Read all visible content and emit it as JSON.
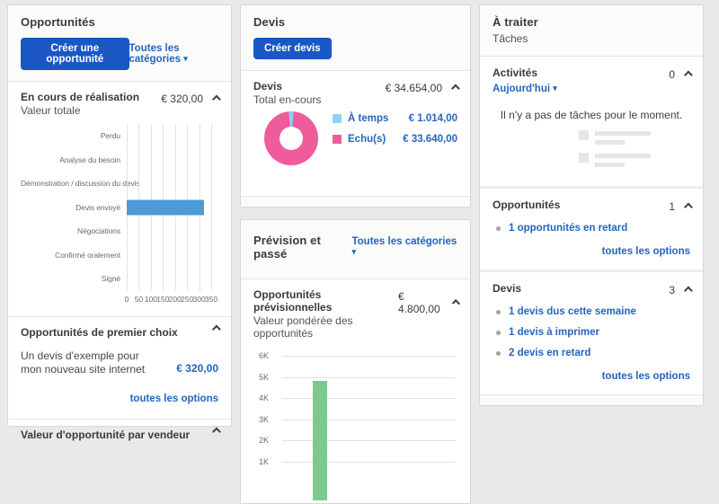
{
  "colors": {
    "accent_blue": "#1b57c4",
    "link_blue": "#2465c0",
    "bar_blue": "#4d9bd8",
    "donut_pink": "#ef5c9b",
    "donut_sky": "#8bd3f5",
    "bar_green": "#7cc98c"
  },
  "icons": {
    "caret_down": "▾"
  },
  "left_panel": {
    "title": "Opportunités",
    "create_button": "Créer une opportunité",
    "category_filter": "Toutes les catégories",
    "in_progress": {
      "title": "En cours de réalisation",
      "subtitle": "Valeur totale",
      "total": "€ 320,00"
    },
    "top_opportunities": {
      "title": "Opportunités de premier choix",
      "item_label": "Un devis d'exemple pour mon nouveau site internet",
      "item_value": "€ 320,00",
      "options_link": "toutes les options"
    },
    "by_vendor_title": "Valeur d'opportunité par vendeur"
  },
  "middle_panel": {
    "quotes": {
      "title": "Devis",
      "create_button": "Créer devis",
      "section_title": "Devis",
      "section_subtitle": "Total en-cours",
      "total": "€ 34.654,00"
    },
    "forecast": {
      "title": "Prévision et passé",
      "category_filter": "Toutes les catégories",
      "section_title": "Opportunités prévisionnelles",
      "section_subtitle": "Valeur pondérée des opportunités",
      "total": "€ 4.800,00"
    }
  },
  "right_panel": {
    "title": "À traiter",
    "subtitle": "Tâches",
    "activities": {
      "title": "Activités",
      "filter": "Aujourd'hui",
      "count": "0",
      "empty_message": "Il n'y a pas de tâches pour le moment."
    },
    "opportunities": {
      "title": "Opportunités",
      "count": "1",
      "items": [
        "1 opportunités en retard"
      ],
      "options_link": "toutes les options"
    },
    "quotes": {
      "title": "Devis",
      "count": "3",
      "items": [
        "1 devis dus cette semaine",
        "1 devis à imprimer",
        "2 devis en retard"
      ],
      "options_link": "toutes les options"
    }
  },
  "chart_data": [
    {
      "type": "bar",
      "orientation": "horizontal",
      "title": "En cours de réalisation",
      "subtitle": "Valeur totale",
      "categories": [
        "Perdu",
        "Analyse du besoin",
        "Démonstration / discussion du devis",
        "Devis envoyé",
        "Négociations",
        "Confirmé oralement",
        "Signé"
      ],
      "values": [
        0,
        0,
        0,
        320,
        0,
        0,
        0
      ],
      "xlim": [
        0,
        350
      ],
      "xticks": [
        0,
        50,
        100,
        150,
        200,
        250,
        300,
        350
      ],
      "bar_color": "#4d9bd8",
      "grid": true,
      "legend_position": "none"
    },
    {
      "type": "pie",
      "donut": true,
      "title": "Devis — Total en-cours",
      "total_display": "€ 34.654,00",
      "slices": [
        {
          "label": "À temps",
          "value": 1014.0,
          "display": "€ 1.014,00",
          "color": "#8bd3f5"
        },
        {
          "label": "Echu(s)",
          "value": 33640.0,
          "display": "€ 33.640,00",
          "color": "#ef5c9b"
        }
      ],
      "legend_position": "right"
    },
    {
      "type": "bar",
      "orientation": "vertical",
      "title": "Opportunités prévisionnelles",
      "subtitle": "Valeur pondérée des opportunités",
      "categories": [
        ""
      ],
      "values": [
        4800
      ],
      "ylim": [
        0,
        6000
      ],
      "yticks": [
        "6K",
        "5K",
        "4K",
        "3K",
        "2K",
        "1K"
      ],
      "bar_color": "#7cc98c",
      "grid": true,
      "legend_position": "none"
    }
  ]
}
